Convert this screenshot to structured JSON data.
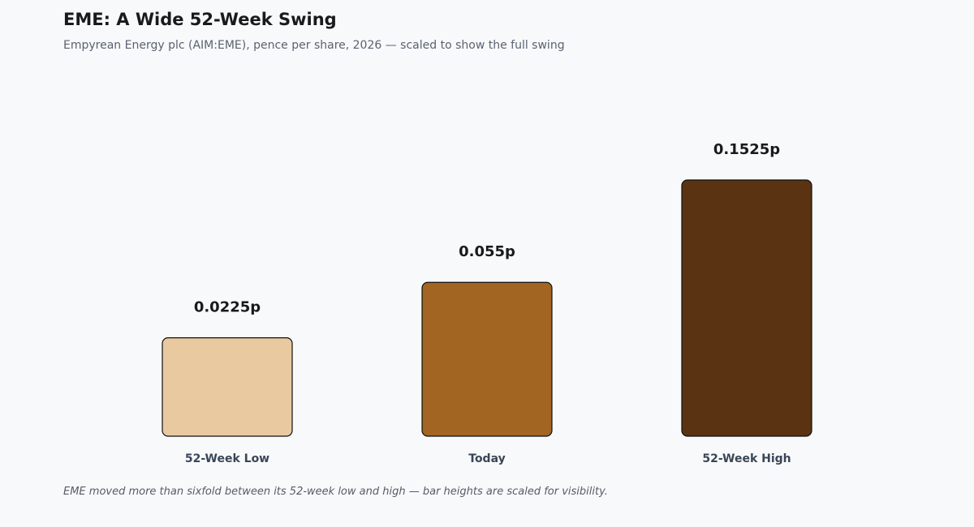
{
  "title": "EME: A Wide 52-Week Swing",
  "subtitle": "Empyrean Energy plc (AIM:EME), pence per share, 2026 — scaled to show the full swing",
  "footnote": "EME moved more than sixfold between its 52-week low and high — bar heights are scaled for visibility.",
  "colors": {
    "low": "#e8c9a0",
    "today": "#a36522",
    "high": "#5a3312",
    "bar_outline": "#111111",
    "value_label": "#1a1a1a",
    "category_label": "#3a4656"
  },
  "chart_data": {
    "type": "bar",
    "title": "EME: A Wide 52-Week Swing",
    "subtitle": "Empyrean Energy plc (AIM:EME), pence per share, 2026 — scaled to show the full swing",
    "categories": [
      "52-Week Low",
      "Today",
      "52-Week High"
    ],
    "values": [
      0.0225,
      0.055,
      0.1525
    ],
    "value_labels": [
      "0.0225p",
      "0.055p",
      "0.1525p"
    ],
    "unit": "p",
    "grid": false,
    "legend": false
  }
}
